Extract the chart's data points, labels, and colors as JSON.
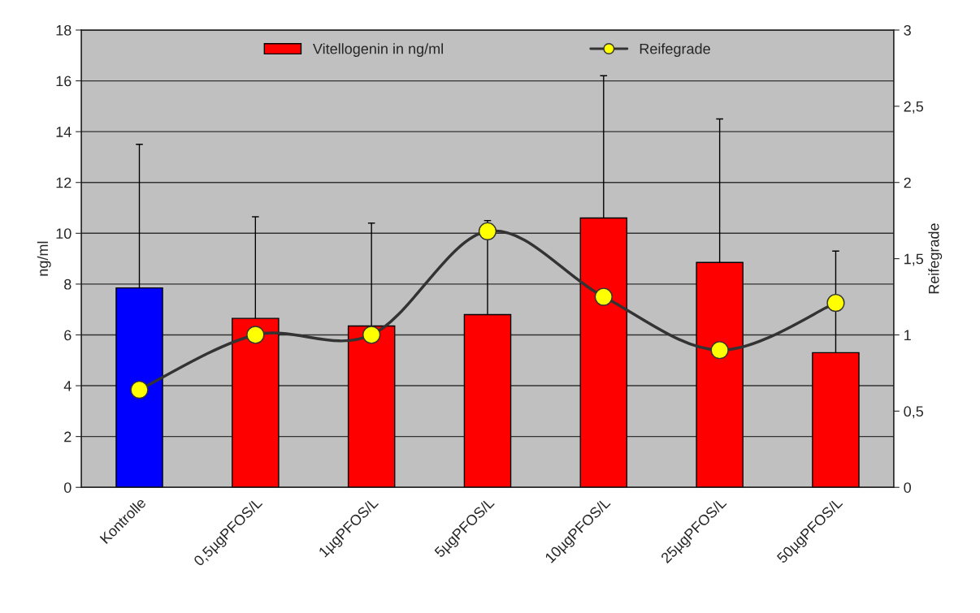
{
  "chart_data": {
    "type": "bar",
    "categories": [
      "Kontrolle",
      "0,5µgPFOS/L",
      "1µgPFOS/L",
      "5µgPFOS/L",
      "10µgPFOS/L",
      "25µgPFOS/L",
      "50µgPFOS/L"
    ],
    "ylabel": "ng/ml",
    "y2label": "Reifegrade",
    "ylim": [
      0,
      18
    ],
    "yticks": [
      0,
      2,
      4,
      6,
      8,
      10,
      12,
      14,
      16,
      18
    ],
    "y2lim": [
      0,
      3
    ],
    "y2ticks": [
      0,
      {
        "value": 0.5,
        "label": "0,5"
      },
      1,
      {
        "value": 1.5,
        "label": "1,5"
      },
      2,
      {
        "value": 2.5,
        "label": "2,5"
      },
      3
    ],
    "grid": "y",
    "legend": "top",
    "series": [
      {
        "name": "Vitellogenin in ng/ml",
        "type": "bar",
        "colors": [
          "#0000ff",
          "#ff0000",
          "#ff0000",
          "#ff0000",
          "#ff0000",
          "#ff0000",
          "#ff0000"
        ],
        "values": [
          7.85,
          6.65,
          6.35,
          6.8,
          10.6,
          8.85,
          5.3
        ],
        "errors": [
          [
            7.85,
            13.5
          ],
          [
            6.65,
            10.65
          ],
          [
            6.35,
            10.4
          ],
          [
            6.8,
            10.5
          ],
          [
            10.6,
            16.2
          ],
          [
            8.85,
            14.5
          ],
          [
            5.3,
            9.3
          ]
        ]
      },
      {
        "name": "Reifegrade",
        "type": "line",
        "axis": "y2",
        "color": "#ffff00",
        "marker": "circle",
        "values": [
          0.64,
          1.0,
          1.0,
          1.68,
          1.25,
          0.9,
          1.21
        ]
      }
    ]
  }
}
